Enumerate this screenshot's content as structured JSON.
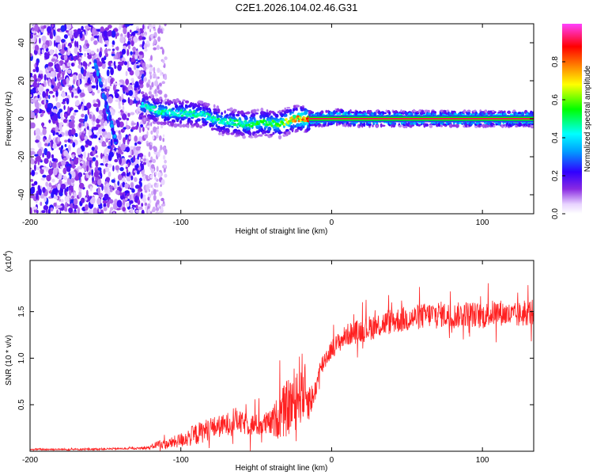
{
  "title": "C2E1.2026.104.02.46.G31",
  "chart_data": [
    {
      "type": "heatmap",
      "title": "C2E1.2026.104.02.46.G31",
      "xlabel": "Height of straight line (km)",
      "ylabel": "Frequency (Hz)",
      "xlim": [
        -200,
        134
      ],
      "ylim": [
        -50,
        50
      ],
      "xticks": [
        -200,
        -100,
        0,
        100
      ],
      "yticks": [
        -40,
        -20,
        0,
        20,
        40
      ],
      "colorbar": {
        "label": "Normalized spectral amplitude",
        "range": [
          0,
          1
        ],
        "ticks": [
          0.0,
          0.2,
          0.4,
          0.6,
          0.8
        ],
        "tick_labels": [
          "0.0",
          "0.2",
          "0.4",
          "0.6",
          "0.8"
        ]
      },
      "ridge": {
        "x": [
          -125,
          -115,
          -105,
          -95,
          -85,
          -75,
          -65,
          -55,
          -45,
          -35,
          -25,
          -15,
          -5,
          5,
          15,
          134
        ],
        "freq": [
          7,
          4,
          3,
          3,
          2,
          -1,
          -2,
          -3,
          -2,
          -3,
          0,
          0,
          0,
          1,
          0,
          0
        ],
        "amplitude": [
          0.45,
          0.5,
          0.45,
          0.5,
          0.45,
          0.5,
          0.5,
          0.55,
          0.55,
          0.6,
          0.75,
          0.85,
          0.9,
          0.9,
          0.95,
          0.95
        ]
      },
      "chirp": {
        "x": [
          -157,
          -143
        ],
        "freq": [
          30,
          -12
        ],
        "amplitude": 0.3
      }
    },
    {
      "type": "line",
      "xlabel": "Height of straight line (km)",
      "ylabel": "SNR (10 * v/v)",
      "y_scale_label": "(x10",
      "y_scale_exponent": "4",
      "xlim": [
        -200,
        134
      ],
      "ylim": [
        0,
        2.05
      ],
      "xticks": [
        -200,
        -100,
        0,
        100
      ],
      "yticks": [
        0.5,
        1.0,
        1.5
      ],
      "ytick_labels": [
        "0.5",
        "1.0",
        "1.5"
      ],
      "series": [
        {
          "name": "SNR",
          "color": "#ff2020",
          "x": [
            -200,
            -170,
            -130,
            -120,
            -115,
            -110,
            -100,
            -90,
            -80,
            -70,
            -65,
            -60,
            -50,
            -40,
            -35,
            -30,
            -25,
            -20,
            -15,
            -12,
            -8,
            -5,
            0,
            10,
            20,
            30,
            40,
            50,
            60,
            70,
            80,
            90,
            100,
            110,
            120,
            134
          ],
          "values": [
            0.02,
            0.02,
            0.03,
            0.04,
            0.08,
            0.07,
            0.12,
            0.18,
            0.25,
            0.28,
            0.35,
            0.3,
            0.28,
            0.3,
            0.38,
            0.45,
            0.55,
            0.7,
            0.55,
            0.58,
            0.85,
            0.98,
            1.1,
            1.25,
            1.3,
            1.35,
            1.4,
            1.42,
            1.45,
            1.48,
            1.45,
            1.48,
            1.45,
            1.5,
            1.45,
            1.5
          ],
          "noise": [
            0.01,
            0.01,
            0.01,
            0.02,
            0.05,
            0.05,
            0.08,
            0.12,
            0.12,
            0.12,
            0.14,
            0.12,
            0.12,
            0.14,
            0.25,
            0.3,
            0.35,
            0.4,
            0.22,
            0.12,
            0.12,
            0.12,
            0.1,
            0.12,
            0.13,
            0.14,
            0.14,
            0.14,
            0.14,
            0.14,
            0.14,
            0.14,
            0.14,
            0.14,
            0.14,
            0.14
          ]
        }
      ]
    }
  ]
}
